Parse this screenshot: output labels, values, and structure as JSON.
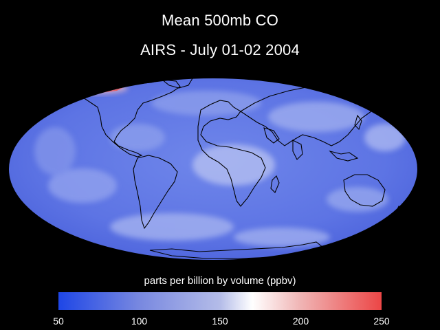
{
  "title": {
    "line1": "Mean 500mb CO",
    "line2": "AIRS - July 01-02 2004"
  },
  "colorbar": {
    "label": "parts per billion by volume (ppbv)",
    "min": 50,
    "max": 250,
    "ticks": [
      "50",
      "100",
      "150",
      "200",
      "250"
    ],
    "stops": [
      {
        "value": 50,
        "color": "#1e46e6"
      },
      {
        "value": 100,
        "color": "#7888e0"
      },
      {
        "value": 150,
        "color": "#b4bce8"
      },
      {
        "value": 170,
        "color": "#ffffff"
      },
      {
        "value": 200,
        "color": "#f0b4b4"
      },
      {
        "value": 250,
        "color": "#ec4646"
      }
    ]
  },
  "map": {
    "projection": "Mollweide",
    "base_color": "#5c74e6",
    "high_color": "#ee5050",
    "coastline_color": "#000000"
  }
}
